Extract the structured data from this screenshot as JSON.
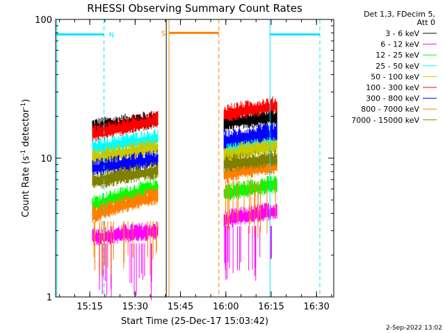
{
  "chart_data": {
    "type": "line",
    "title": "RHESSI Observing Summary Count Rates",
    "xlabel": "Start Time (25-Dec-17 15:03:42)",
    "ylabel_main": "Count Rate (s",
    "ylabel_sup1": "-1",
    "ylabel_mid": " detector",
    "ylabel_sup2": "-1",
    "ylabel_end": ")",
    "y_scale": "log",
    "ylim": [
      1,
      100
    ],
    "xlim_minutes": [
      0,
      92
    ],
    "x_ticks": [
      {
        "minute": 11.3,
        "label": "15:15"
      },
      {
        "minute": 26.3,
        "label": "15:30"
      },
      {
        "minute": 41.3,
        "label": "15:45"
      },
      {
        "minute": 56.3,
        "label": "16:00"
      },
      {
        "minute": 71.3,
        "label": "16:15"
      },
      {
        "minute": 86.3,
        "label": "16:30"
      }
    ],
    "y_ticks": [
      {
        "value": 1,
        "label": "1"
      },
      {
        "value": 10,
        "label": "10"
      },
      {
        "value": 100,
        "label": "100"
      }
    ],
    "legend_header": [
      "Det 1,3, FDecim 5,",
      "Att 0"
    ],
    "legend_position": "right",
    "series": [
      {
        "name": "3 - 6 keV",
        "color": "#000000",
        "seg1": [
          16.5,
          19
        ],
        "seg2": [
          18,
          20
        ]
      },
      {
        "name": "6 - 12 keV",
        "color": "#ff00ff",
        "seg1": [
          2.7,
          3.0
        ],
        "seg2": [
          3.6,
          4.2
        ]
      },
      {
        "name": "12 - 25 keV",
        "color": "#00ff00",
        "seg1": [
          4.6,
          6.2
        ],
        "seg2": [
          5.6,
          6.5
        ]
      },
      {
        "name": "25 - 50 keV",
        "color": "#00ffff",
        "seg1": [
          11.8,
          14
        ],
        "seg2": [
          12,
          14
        ]
      },
      {
        "name": "50 - 100 keV",
        "color": "#c8c800",
        "seg1": [
          10,
          12
        ],
        "seg2": [
          10.5,
          12.5
        ]
      },
      {
        "name": "100 - 300 keV",
        "color": "#ff0000",
        "seg1": [
          15,
          19
        ],
        "seg2": [
          21,
          24
        ]
      },
      {
        "name": "300 - 800 keV",
        "color": "#0000ff",
        "seg1": [
          8.5,
          9.8
        ],
        "seg2": [
          13.5,
          15.5
        ]
      },
      {
        "name": "800 - 7000 keV",
        "color": "#ff8000",
        "seg1": [
          3.9,
          5.4
        ],
        "seg2": [
          7.6,
          9
        ]
      },
      {
        "name": "7000 - 15000 keV",
        "color": "#808000",
        "seg1": [
          6.8,
          8.2
        ],
        "seg2": [
          9,
          10
        ]
      }
    ],
    "data_segments_minutes": [
      [
        12.2,
        34.0
      ],
      [
        55.7,
        73.2
      ]
    ],
    "annotations": [
      {
        "label": "N",
        "color": "#00e5ff",
        "bar_minutes": [
          0,
          16.0
        ],
        "value": 78,
        "marker_minute": 16.0
      },
      {
        "label": "S",
        "color": "#ff8000",
        "bar_minutes": [
          37.5,
          54.0
        ],
        "value": 80,
        "marker_minute": 37.5
      },
      {
        "bar_minutes": [
          70.9,
          87.4
        ],
        "color": "#00e5ff",
        "value": 78
      }
    ],
    "vertical_lines": [
      {
        "minute": 0.4,
        "color": "#00e5ff",
        "style": "solid"
      },
      {
        "minute": 16.0,
        "color": "#00e5ff",
        "style": "dashed"
      },
      {
        "minute": 36.6,
        "color": "#000000",
        "style": "solid"
      },
      {
        "minute": 37.5,
        "color": "#ff8000",
        "style": "solid"
      },
      {
        "minute": 54.0,
        "color": "#ff8000",
        "style": "dashed"
      },
      {
        "minute": 70.9,
        "color": "#00e5ff",
        "style": "solid"
      },
      {
        "minute": 87.4,
        "color": "#00e5ff",
        "style": "dashed"
      }
    ],
    "footer_date": "2-Sep-2022 13:02"
  }
}
